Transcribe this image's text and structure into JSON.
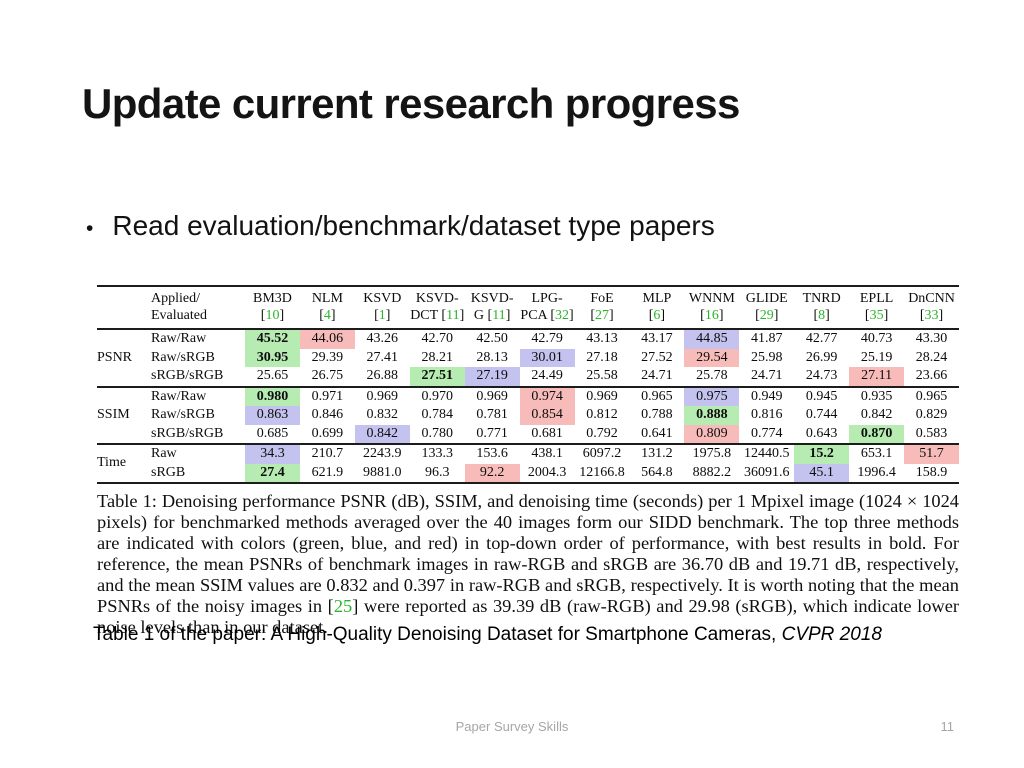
{
  "slide": {
    "title": "Update current research progress",
    "bullet_glyph": "•",
    "bullet": "Read evaluation/benchmark/dataset type papers",
    "source_note": "Table 1 of the paper: A High-Quality Denoising Dataset for Smartphone Cameras, ",
    "source_note_italic": "CVPR 2018",
    "footer": "Paper Survey Skills",
    "page_number": "11"
  },
  "colors": {
    "green_highlight": "#b6ebb2",
    "blue_highlight": "#c4c2ee",
    "red_highlight": "#f7bcba",
    "cite_green": "#2cb52c",
    "footer_gray": "#a6a6a6"
  },
  "table": {
    "header_label_line1": "Applied/",
    "header_label_line2": "Evaluated",
    "methods": [
      {
        "l1": "BM3D",
        "pre": "",
        "cite": "10"
      },
      {
        "l1": "NLM",
        "pre": "",
        "cite": "4"
      },
      {
        "l1": "KSVD",
        "pre": "",
        "cite": "1"
      },
      {
        "l1": "KSVD-",
        "pre": "DCT ",
        "cite": "11"
      },
      {
        "l1": "KSVD-",
        "pre": "G ",
        "cite": "11"
      },
      {
        "l1": "LPG-",
        "pre": "PCA ",
        "cite": "32"
      },
      {
        "l1": "FoE",
        "pre": "",
        "cite": "27"
      },
      {
        "l1": "MLP",
        "pre": "",
        "cite": "6"
      },
      {
        "l1": "WNNM",
        "pre": "",
        "cite": "16"
      },
      {
        "l1": "GLIDE",
        "pre": "",
        "cite": "29"
      },
      {
        "l1": "TNRD",
        "pre": "",
        "cite": "8"
      },
      {
        "l1": "EPLL",
        "pre": "",
        "cite": "35"
      },
      {
        "l1": "DnCNN",
        "pre": "",
        "cite": "33"
      }
    ],
    "groups": [
      {
        "label": "PSNR",
        "rows": [
          {
            "label": "Raw/Raw",
            "cells": [
              {
                "v": "45.52",
                "hl": "green",
                "bold": true
              },
              {
                "v": "44.06",
                "hl": "red"
              },
              {
                "v": "43.26"
              },
              {
                "v": "42.70"
              },
              {
                "v": "42.50"
              },
              {
                "v": "42.79"
              },
              {
                "v": "43.13"
              },
              {
                "v": "43.17"
              },
              {
                "v": "44.85",
                "hl": "blue"
              },
              {
                "v": "41.87"
              },
              {
                "v": "42.77"
              },
              {
                "v": "40.73"
              },
              {
                "v": "43.30"
              }
            ]
          },
          {
            "label": "Raw/sRGB",
            "cells": [
              {
                "v": "30.95",
                "hl": "green",
                "bold": true
              },
              {
                "v": "29.39"
              },
              {
                "v": "27.41"
              },
              {
                "v": "28.21"
              },
              {
                "v": "28.13"
              },
              {
                "v": "30.01",
                "hl": "blue"
              },
              {
                "v": "27.18"
              },
              {
                "v": "27.52"
              },
              {
                "v": "29.54",
                "hl": "red"
              },
              {
                "v": "25.98"
              },
              {
                "v": "26.99"
              },
              {
                "v": "25.19"
              },
              {
                "v": "28.24"
              }
            ]
          },
          {
            "label": "sRGB/sRGB",
            "cells": [
              {
                "v": "25.65"
              },
              {
                "v": "26.75"
              },
              {
                "v": "26.88"
              },
              {
                "v": "27.51",
                "hl": "green",
                "bold": true
              },
              {
                "v": "27.19",
                "hl": "blue"
              },
              {
                "v": "24.49"
              },
              {
                "v": "25.58"
              },
              {
                "v": "24.71"
              },
              {
                "v": "25.78"
              },
              {
                "v": "24.71"
              },
              {
                "v": "24.73"
              },
              {
                "v": "27.11",
                "hl": "red"
              },
              {
                "v": "23.66"
              }
            ]
          }
        ]
      },
      {
        "label": "SSIM",
        "rows": [
          {
            "label": "Raw/Raw",
            "cells": [
              {
                "v": "0.980",
                "hl": "green",
                "bold": true
              },
              {
                "v": "0.971"
              },
              {
                "v": "0.969"
              },
              {
                "v": "0.970"
              },
              {
                "v": "0.969"
              },
              {
                "v": "0.974",
                "hl": "red"
              },
              {
                "v": "0.969"
              },
              {
                "v": "0.965"
              },
              {
                "v": "0.975",
                "hl": "blue"
              },
              {
                "v": "0.949"
              },
              {
                "v": "0.945"
              },
              {
                "v": "0.935"
              },
              {
                "v": "0.965"
              }
            ]
          },
          {
            "label": "Raw/sRGB",
            "cells": [
              {
                "v": "0.863",
                "hl": "blue"
              },
              {
                "v": "0.846"
              },
              {
                "v": "0.832"
              },
              {
                "v": "0.784"
              },
              {
                "v": "0.781"
              },
              {
                "v": "0.854",
                "hl": "red"
              },
              {
                "v": "0.812"
              },
              {
                "v": "0.788"
              },
              {
                "v": "0.888",
                "hl": "green",
                "bold": true
              },
              {
                "v": "0.816"
              },
              {
                "v": "0.744"
              },
              {
                "v": "0.842"
              },
              {
                "v": "0.829"
              }
            ]
          },
          {
            "label": "sRGB/sRGB",
            "cells": [
              {
                "v": "0.685"
              },
              {
                "v": "0.699"
              },
              {
                "v": "0.842",
                "hl": "blue"
              },
              {
                "v": "0.780"
              },
              {
                "v": "0.771"
              },
              {
                "v": "0.681"
              },
              {
                "v": "0.792"
              },
              {
                "v": "0.641"
              },
              {
                "v": "0.809",
                "hl": "red"
              },
              {
                "v": "0.774"
              },
              {
                "v": "0.643"
              },
              {
                "v": "0.870",
                "hl": "green",
                "bold": true
              },
              {
                "v": "0.583"
              }
            ]
          }
        ]
      },
      {
        "label": "Time",
        "rows": [
          {
            "label": "Raw",
            "cells": [
              {
                "v": "34.3",
                "hl": "blue"
              },
              {
                "v": "210.7"
              },
              {
                "v": "2243.9"
              },
              {
                "v": "133.3"
              },
              {
                "v": "153.6"
              },
              {
                "v": "438.1"
              },
              {
                "v": "6097.2"
              },
              {
                "v": "131.2"
              },
              {
                "v": "1975.8"
              },
              {
                "v": "12440.5"
              },
              {
                "v": "15.2",
                "hl": "green",
                "bold": true
              },
              {
                "v": "653.1"
              },
              {
                "v": "51.7",
                "hl": "red"
              }
            ]
          },
          {
            "label": "sRGB",
            "cells": [
              {
                "v": "27.4",
                "hl": "green",
                "bold": true
              },
              {
                "v": "621.9"
              },
              {
                "v": "9881.0"
              },
              {
                "v": "96.3"
              },
              {
                "v": "92.2",
                "hl": "red"
              },
              {
                "v": "2004.3"
              },
              {
                "v": "12166.8"
              },
              {
                "v": "564.8"
              },
              {
                "v": "8882.2"
              },
              {
                "v": "36091.6"
              },
              {
                "v": "45.1",
                "hl": "blue"
              },
              {
                "v": "1996.4"
              },
              {
                "v": "158.9"
              }
            ]
          }
        ]
      }
    ]
  },
  "caption": {
    "part1": "Table 1: Denoising performance PSNR (dB), SSIM, and denoising time (seconds) per 1 Mpixel image (1024 × 1024 pixels) for benchmarked methods averaged over the 40 images form our SIDD benchmark. The top three methods are indicated with colors (green, blue, and red) in top-down order of performance, with best results in bold. For reference, the mean PSNRs of benchmark images in raw-RGB and sRGB are 36.70 dB and 19.71 dB, respectively, and the mean SSIM values are 0.832 and 0.397 in raw-RGB and sRGB, respectively. It is worth noting that the mean PSNRs of the noisy images in [",
    "cite": "25",
    "part2": "] were reported as 39.39 dB (raw-RGB) and 29.98 (sRGB), which indicate lower noise levels than in our dataset."
  }
}
